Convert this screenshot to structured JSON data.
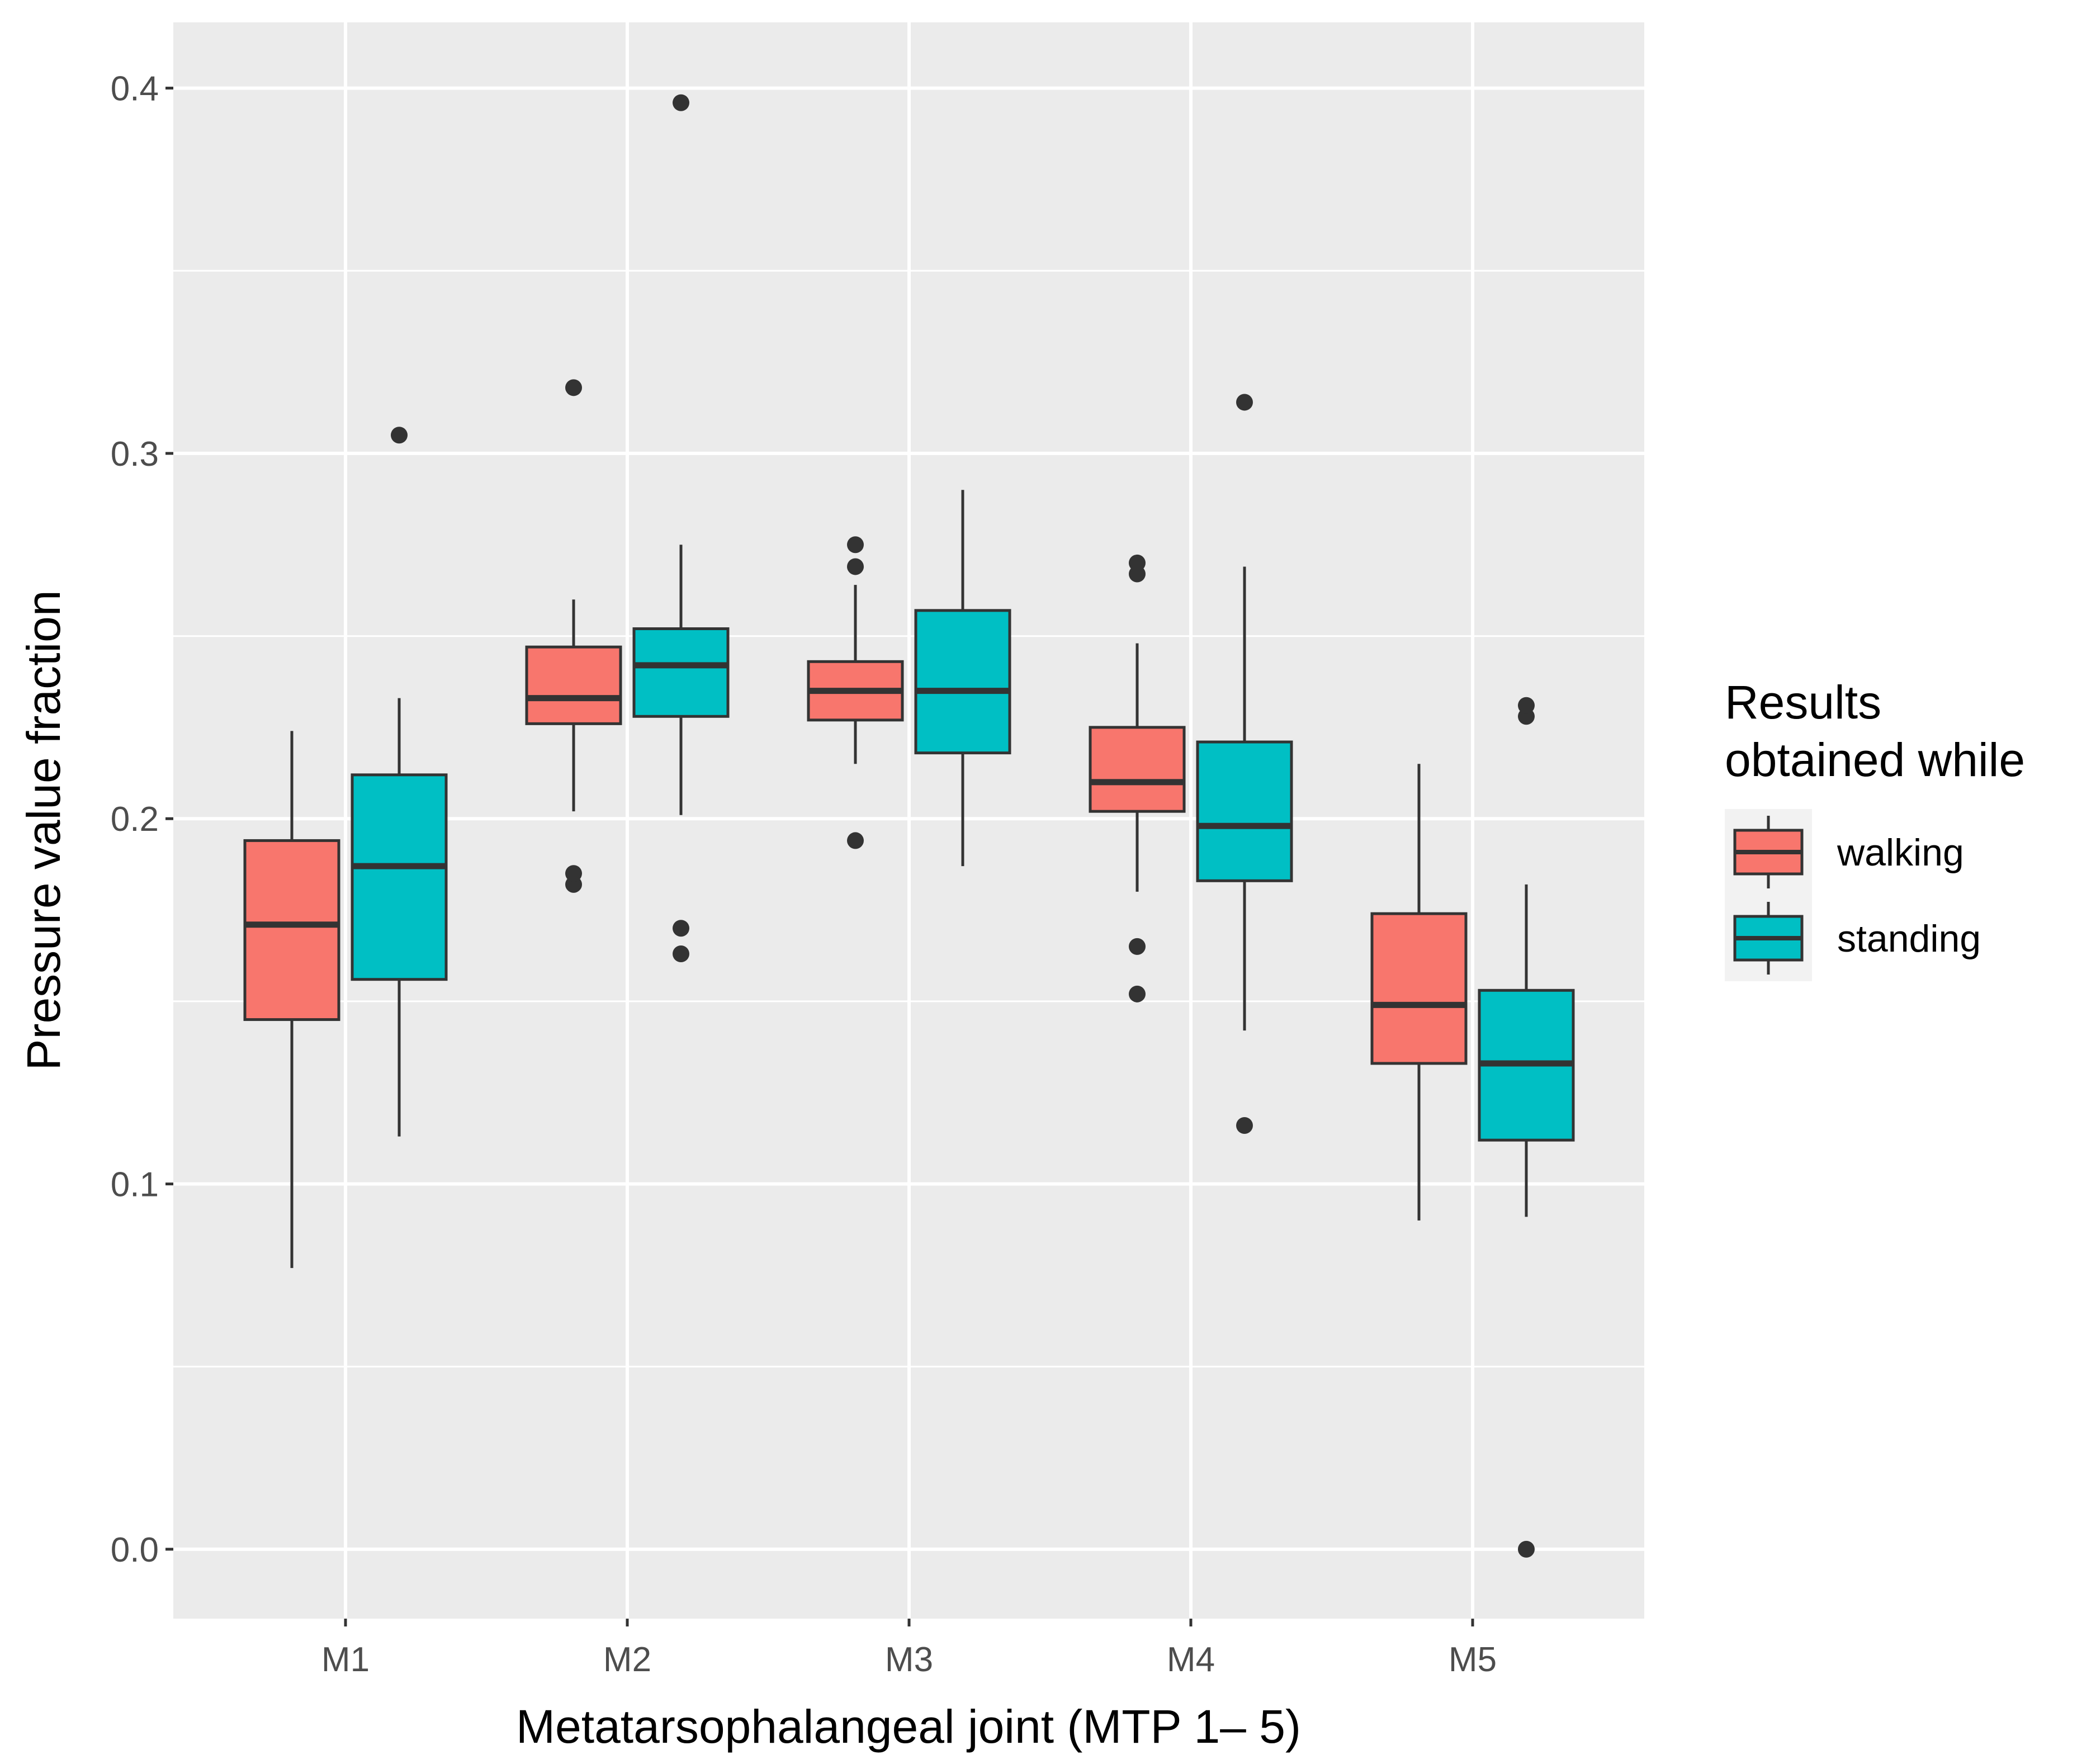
{
  "chart_data": {
    "type": "boxplot",
    "title": "",
    "xlabel": "Metatarsophalangeal joint (MTP 1– 5)",
    "ylabel": "Pressure value fraction",
    "categories": [
      "M1",
      "M2",
      "M3",
      "M4",
      "M5"
    ],
    "ylim": [
      -0.019,
      0.418
    ],
    "yticks": [
      "0.0",
      "0.1",
      "0.2",
      "0.3",
      "0.4"
    ],
    "ytick_values": [
      0.0,
      0.1,
      0.2,
      0.3,
      0.4
    ],
    "grid": true,
    "legend": {
      "title_lines": [
        "Results",
        "obtained while"
      ],
      "position": "right"
    },
    "series": [
      {
        "name": "walking",
        "color": "#F8766D",
        "boxes": [
          {
            "category": "M1",
            "whisker_low": 0.077,
            "q1": 0.145,
            "median": 0.171,
            "q3": 0.194,
            "whisker_high": 0.224,
            "outliers": []
          },
          {
            "category": "M2",
            "whisker_low": 0.202,
            "q1": 0.226,
            "median": 0.233,
            "q3": 0.247,
            "whisker_high": 0.26,
            "outliers": [
              0.182,
              0.185,
              0.318
            ]
          },
          {
            "category": "M3",
            "whisker_low": 0.215,
            "q1": 0.227,
            "median": 0.235,
            "q3": 0.243,
            "whisker_high": 0.264,
            "outliers": [
              0.194,
              0.269,
              0.275
            ]
          },
          {
            "category": "M4",
            "whisker_low": 0.18,
            "q1": 0.202,
            "median": 0.21,
            "q3": 0.225,
            "whisker_high": 0.248,
            "outliers": [
              0.152,
              0.165,
              0.267,
              0.27
            ]
          },
          {
            "category": "M5",
            "whisker_low": 0.09,
            "q1": 0.133,
            "median": 0.149,
            "q3": 0.174,
            "whisker_high": 0.215,
            "outliers": []
          }
        ]
      },
      {
        "name": "standing",
        "color": "#00BFC4",
        "boxes": [
          {
            "category": "M1",
            "whisker_low": 0.113,
            "q1": 0.156,
            "median": 0.187,
            "q3": 0.212,
            "whisker_high": 0.233,
            "outliers": [
              0.305
            ]
          },
          {
            "category": "M2",
            "whisker_low": 0.201,
            "q1": 0.228,
            "median": 0.242,
            "q3": 0.252,
            "whisker_high": 0.275,
            "outliers": [
              0.163,
              0.17,
              0.396
            ]
          },
          {
            "category": "M3",
            "whisker_low": 0.187,
            "q1": 0.218,
            "median": 0.235,
            "q3": 0.257,
            "whisker_high": 0.29,
            "outliers": []
          },
          {
            "category": "M4",
            "whisker_low": 0.142,
            "q1": 0.183,
            "median": 0.198,
            "q3": 0.221,
            "whisker_high": 0.269,
            "outliers": [
              0.116,
              0.314
            ]
          },
          {
            "category": "M5",
            "whisker_low": 0.091,
            "q1": 0.112,
            "median": 0.133,
            "q3": 0.153,
            "whisker_high": 0.182,
            "outliers": [
              0.0,
              0.228,
              0.231
            ]
          }
        ]
      }
    ]
  }
}
